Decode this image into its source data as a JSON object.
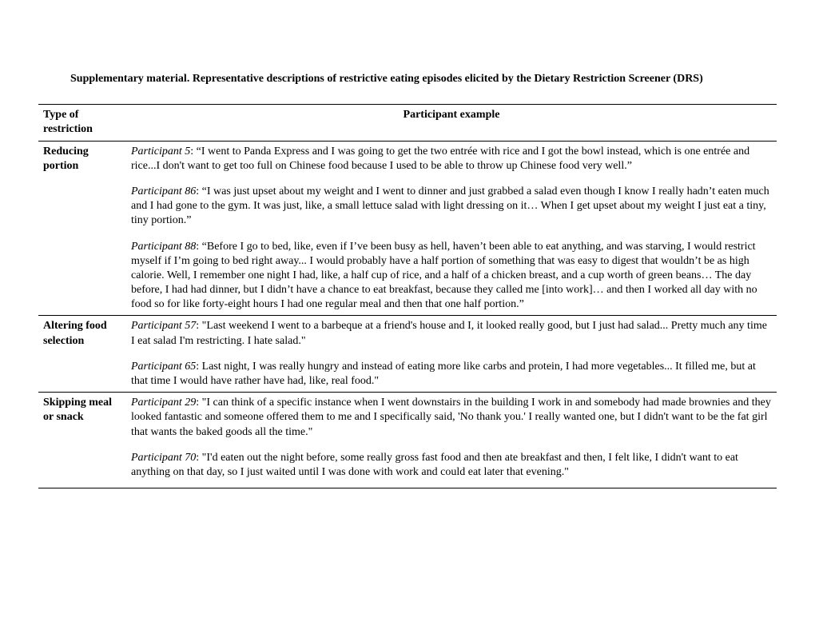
{
  "title": "Supplementary material. Representative descriptions of restrictive eating episodes elicited by the Dietary Restriction Screener (DRS)",
  "headers": {
    "type": "Type of restriction",
    "example": "Participant example"
  },
  "rows": [
    {
      "type": "Reducing portion",
      "entries": [
        {
          "label": "Participant 5",
          "text": ": “I went to Panda Express and I was going to get the two entrée with rice and I got the bowl instead, which is one entrée and rice...I don't want to get too full on Chinese food because I used to be able to throw up Chinese food very well.”"
        },
        {
          "label": "Participant 86",
          "text": ": “I was just upset about my weight and I went to dinner and just grabbed a salad even though I know I really hadn’t eaten much and I had gone to the gym. It was just, like, a small lettuce salad with light dressing on it… When I get upset about my weight I just eat a tiny, tiny portion.”"
        },
        {
          "label": "Participant 88",
          "text": ": “Before I go to bed, like, even if I’ve been busy as hell, haven’t been able to eat anything, and was starving, I would restrict myself if I’m going to bed right away... I would probably have a half portion of something that was easy to digest that wouldn’t be as high calorie. Well, I remember one night I had, like, a half cup of rice, and a half of a chicken breast, and a cup worth of green beans… The day before, I had had dinner, but I didn’t have a chance to eat breakfast, because they called me [into work]… and then I worked all day with no food so for like forty-eight hours I had one regular meal and then that one half portion.”"
        }
      ]
    },
    {
      "type": "Altering food selection",
      "entries": [
        {
          "label": "Participant 57",
          "text": ": \"Last weekend I went to a barbeque at a friend's house and I, it looked really good, but I just had salad... Pretty much any time I eat salad I'm restricting. I hate salad.\""
        },
        {
          "label": "Participant 65",
          "text": ": Last night, I was really hungry and instead of eating more like carbs and protein, I had more vegetables... It filled me, but at that time I would have rather have had, like, real food.\""
        }
      ]
    },
    {
      "type": "Skipping meal or snack",
      "entries": [
        {
          "label": "Participant 29",
          "text": ": \"I can think of a specific instance when I went downstairs in the building I work in and somebody had made brownies and they looked fantastic and someone offered them to me and I specifically said, 'No thank you.' I really wanted one, but I didn't want to be the fat girl that wants the baked goods all the time.\""
        },
        {
          "label": "Participant 70",
          "text": ": \"I'd eaten out the night before, some really gross fast food and then ate breakfast and then, I felt like, I didn't want to eat anything on that day, so I just waited until I was done with work and could eat later that evening.\""
        }
      ]
    }
  ]
}
